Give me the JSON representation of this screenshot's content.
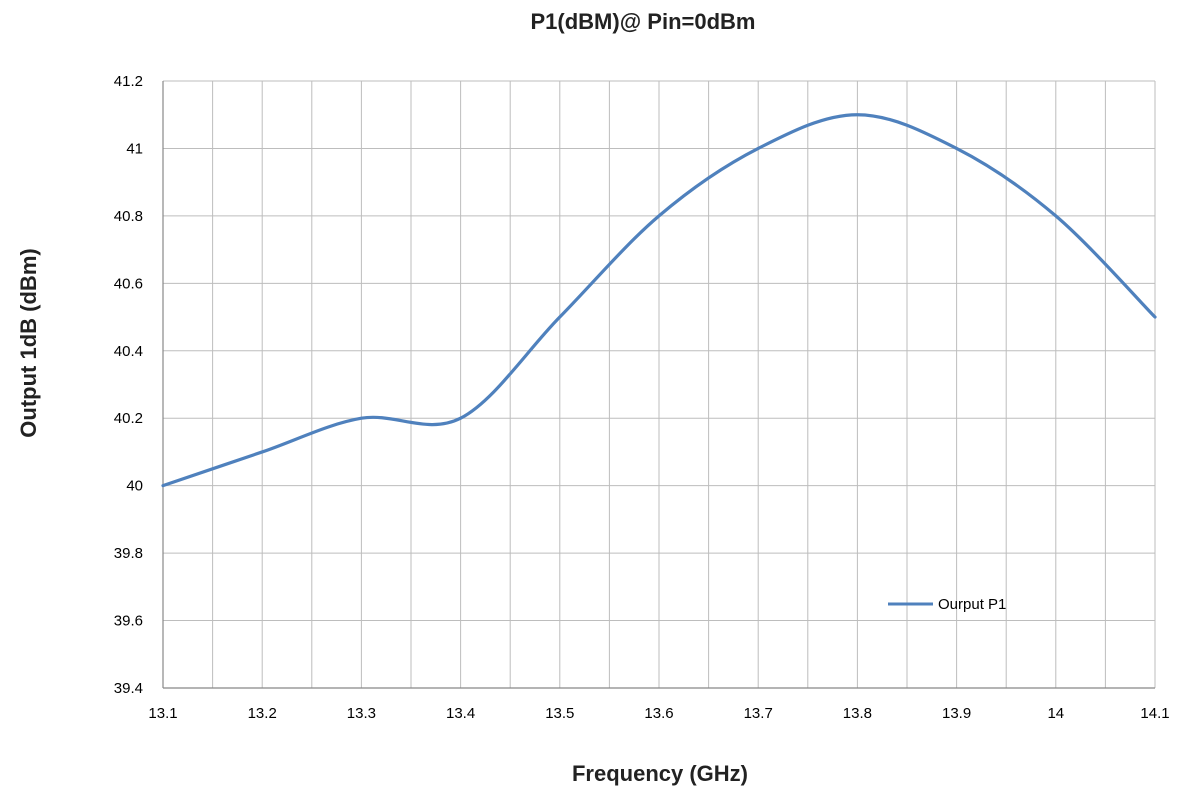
{
  "chart_data": {
    "type": "line",
    "title": "P1(dBM)@ Pin=0dBm",
    "xlabel": "Frequency (GHz)",
    "ylabel": "Output  1dB (dBm)",
    "xlim": [
      13.1,
      14.1
    ],
    "ylim": [
      39.4,
      41.2
    ],
    "x_ticks": [
      "13.1",
      "13.2",
      "13.3",
      "13.4",
      "13.5",
      "13.6",
      "13.7",
      "13.8",
      "13.9",
      "14",
      "14.1"
    ],
    "y_ticks": [
      "39.4",
      "39.6",
      "39.8",
      "40",
      "40.2",
      "40.4",
      "40.6",
      "40.8",
      "41",
      "41.2"
    ],
    "x_minor_step": 0.05,
    "grid": true,
    "legend_position": "lower-right",
    "series": [
      {
        "name": "Ourput P1",
        "color": "#4f81bd",
        "x": [
          13.1,
          13.2,
          13.3,
          13.4,
          13.5,
          13.6,
          13.7,
          13.8,
          13.9,
          14.0,
          14.1
        ],
        "y": [
          40.0,
          40.1,
          40.2,
          40.2,
          40.5,
          40.8,
          41.0,
          41.1,
          41.0,
          40.8,
          40.5
        ]
      }
    ]
  }
}
